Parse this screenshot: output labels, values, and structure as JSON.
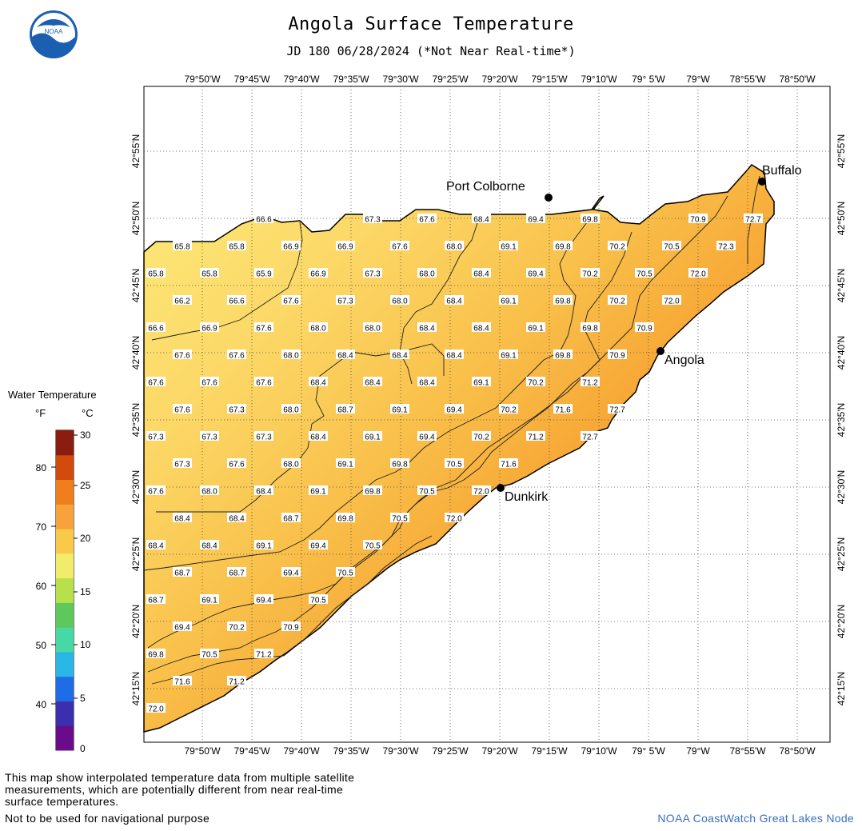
{
  "header": {
    "title": "Angola Surface Temperature",
    "subtitle": "JD 180 06/28/2024 (*Not Near Real-time*)",
    "logo_text": "NOAA"
  },
  "longitude_labels": [
    "79°50'W",
    "79°45'W",
    "79°40'W",
    "79°35'W",
    "79°30'W",
    "79°25'W",
    "79°20'W",
    "79°15'W",
    "79°10'W",
    "79° 5'W",
    "79°W",
    "78°55'W",
    "78°50'W"
  ],
  "latitude_labels": [
    "42°55'N",
    "42°50'N",
    "42°45'N",
    "42°40'N",
    "42°35'N",
    "42°30'N",
    "42°25'N",
    "42°20'N",
    "42°15'N"
  ],
  "cities": [
    {
      "name": "Port Colborne"
    },
    {
      "name": "Buffalo"
    },
    {
      "name": "Angola"
    },
    {
      "name": "Dunkirk"
    }
  ],
  "legend": {
    "title": "Water Temperature",
    "unit_f": "°F",
    "unit_c": "°C",
    "f_ticks": [
      "80",
      "70",
      "60",
      "50",
      "40"
    ],
    "c_ticks": [
      "30",
      "25",
      "20",
      "15",
      "10",
      "5",
      "0"
    ],
    "colors": [
      "#6a0c8a",
      "#3b2fb0",
      "#1f6de6",
      "#2bb6e8",
      "#46d9a6",
      "#5ec95a",
      "#b8e04a",
      "#f3ec6a",
      "#f9c94a",
      "#f7a23a",
      "#f07e1c",
      "#d24a0c",
      "#8a1c10"
    ]
  },
  "temperatures": [
    "66.6",
    "67.3",
    "67.6",
    "68.4",
    "69.4",
    "69.8",
    "70.9",
    "72.7",
    "65.8",
    "65.8",
    "66.9",
    "66.9",
    "67.6",
    "68.0",
    "69.1",
    "69.8",
    "70.2",
    "70.5",
    "72.3",
    "65.8",
    "65.8",
    "65.9",
    "66.9",
    "67.3",
    "68.0",
    "68.4",
    "69.4",
    "70.2",
    "70.5",
    "72.0",
    "66.2",
    "66.6",
    "67.6",
    "67.3",
    "68.0",
    "68.4",
    "69.1",
    "69.8",
    "70.2",
    "72.0",
    "66.6",
    "66.9",
    "67.6",
    "68.0",
    "68.0",
    "68.4",
    "68.4",
    "69.1",
    "69.8",
    "70.9",
    "67.6",
    "67.6",
    "68.0",
    "68.4",
    "68.4",
    "68.4",
    "69.1",
    "69.8",
    "70.9",
    "67.6",
    "67.6",
    "67.6",
    "68.4",
    "68.4",
    "68.4",
    "69.1",
    "70.2",
    "71.2",
    "67.6",
    "67.3",
    "68.0",
    "68.7",
    "69.1",
    "69.4",
    "70.2",
    "71.6",
    "72.7",
    "67.3",
    "67.3",
    "67.3",
    "68.4",
    "69.1",
    "69.4",
    "70.2",
    "71.2",
    "72.7",
    "67.3",
    "67.6",
    "68.0",
    "69.1",
    "69.8",
    "70.5",
    "71.6",
    "67.6",
    "68.0",
    "68.4",
    "69.1",
    "69.8",
    "70.5",
    "72.0",
    "68.4",
    "68.4",
    "68.7",
    "69.8",
    "70.5",
    "72.0",
    "68.4",
    "68.4",
    "69.1",
    "69.4",
    "70.5",
    "68.7",
    "68.7",
    "69.4",
    "70.5",
    "68.7",
    "69.1",
    "69.4",
    "70.5",
    "69.4",
    "70.2",
    "70.9",
    "69.8",
    "70.5",
    "71.2",
    "71.6",
    "71.2",
    "72.0"
  ],
  "footer": {
    "note": "This map show interpolated temperature data from multiple satellite measurements, which are potentially different from near real-time surface temperatures.",
    "disclaimer": "Not to be used for navigational purpose",
    "credit": "NOAA CoastWatch Great Lakes Node"
  }
}
